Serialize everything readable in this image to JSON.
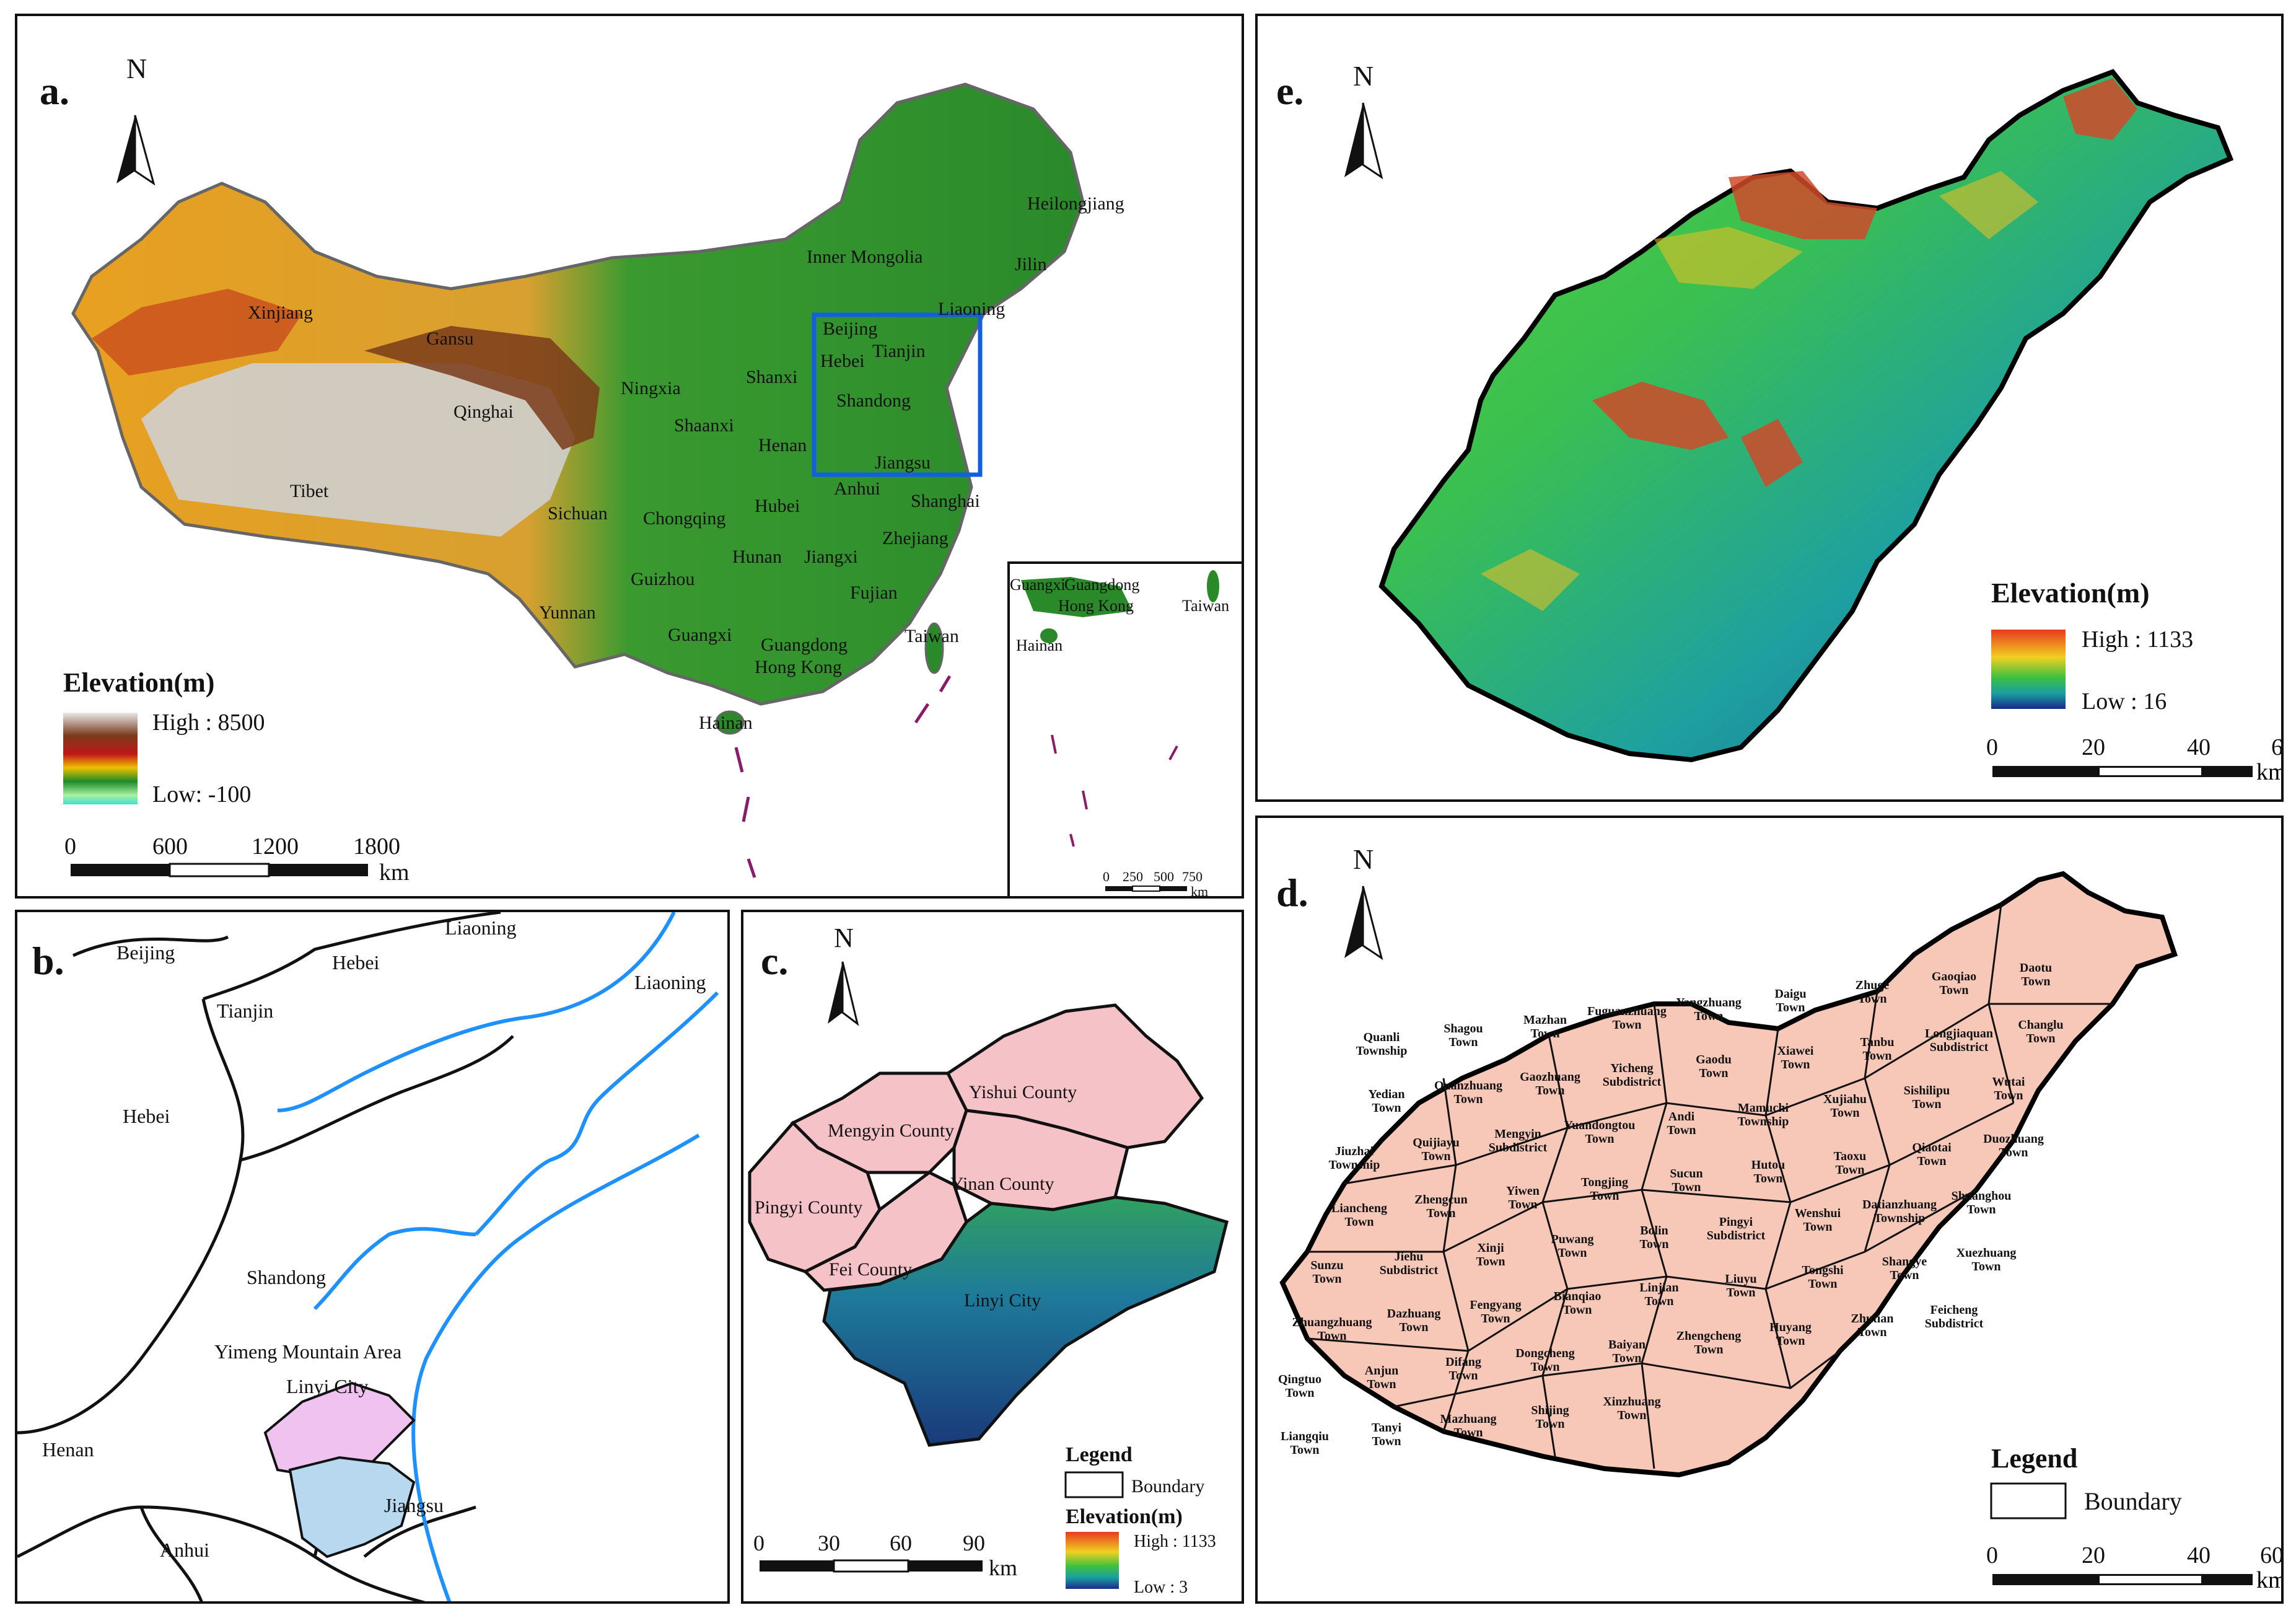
{
  "panel_a": {
    "letter": "a.",
    "north": "N",
    "legend_title": "Elevation(m)",
    "high": "High : 8500",
    "low": "Low: -100",
    "scale_ticks": [
      "0",
      "600",
      "1200",
      "1800"
    ],
    "scale_unit": "km",
    "inset_ticks": [
      "0",
      "250",
      "500",
      "750"
    ],
    "inset_unit": "km",
    "labels": [
      "Xinjiang",
      "Gansu",
      "Qinghai",
      "Tibet",
      "Ningxia",
      "Shaanxi",
      "Sichuan",
      "Chongqing",
      "Yunnan",
      "Guizhou",
      "Guangxi",
      "Hainan",
      "Hunan",
      "Jiangxi",
      "Hubei",
      "Henan",
      "Anhui",
      "Shanxi",
      "Inner Mongolia",
      "Heilongjiang",
      "Jilin",
      "Liaoning",
      "Beijing",
      "Hebei",
      "Tianjin",
      "Shandong",
      "Jiangsu",
      "Shanghai",
      "Zhejiang",
      "Fujian",
      "Guangdong",
      "Hong Kong",
      "Taiwan"
    ],
    "inset_labels": [
      "Guangxi",
      "Guangdong",
      "Hong Kong",
      "Taiwan",
      "Hainan"
    ]
  },
  "panel_b": {
    "letter": "b.",
    "labels": [
      "Beijing",
      "Tianjin",
      "Hebei",
      "Liaoning",
      "Liaoning",
      "Hebei",
      "Shandong",
      "Yimeng Mountain Area",
      "Linyi City",
      "Henan",
      "Jiangsu",
      "Anhui"
    ]
  },
  "panel_c": {
    "letter": "c.",
    "north": "N",
    "counties": [
      "Yishui County",
      "Mengyin County",
      "Yinan County",
      "Pingyi County",
      "Fei County",
      "Linyi City"
    ],
    "legend_title": "Legend",
    "boundary": "Boundary",
    "elev_title": "Elevation(m)",
    "high": "High : 1133",
    "low": "Low : 3",
    "scale_ticks": [
      "0",
      "30",
      "60",
      "90"
    ],
    "scale_unit": "km"
  },
  "panel_e": {
    "letter": "e.",
    "north": "N",
    "legend_title": "Elevation(m)",
    "high": "High : 1133",
    "low": "Low : 16",
    "scale_ticks": [
      "0",
      "20",
      "40",
      "60"
    ],
    "scale_unit": "km"
  },
  "panel_d": {
    "letter": "d.",
    "north": "N",
    "legend_title": "Legend",
    "boundary": "Boundary",
    "scale_ticks": [
      "0",
      "20",
      "40",
      "60"
    ],
    "scale_unit": "km",
    "towns": [
      "Quanli Township",
      "Shagou Town",
      "Mazhan Town",
      "Fuguanzhuang Town",
      "Yangzhuang Town",
      "Daigu Town",
      "Zhuge Town",
      "Gaoqiao Town",
      "Daotu Town",
      "Yedian Town",
      "Quanzhuang Town",
      "Gaozhuang Town",
      "Yicheng Subdistrict",
      "Gaodu Town",
      "Xiawei Town",
      "Tanbu Town",
      "Longjiaquan Subdistrict",
      "Changlu Town",
      "Jiuzhai Township",
      "Quijiayu Town",
      "Mengyin Subdistrict",
      "Yuandongtou Town",
      "Andi Town",
      "Mamuchi Township",
      "Xujiahu Town",
      "Sishilipu Town",
      "Wutai Town",
      "Liancheng Town",
      "Zhengcun Town",
      "Yiwen Town",
      "Tongjing Town",
      "Sucun Town",
      "Hutou Town",
      "Taoxu Town",
      "Qiaotai Town",
      "Duozhuang Town",
      "Sunzu Town",
      "Jiehu Subdistrict",
      "Xinji Town",
      "Puwang Town",
      "Bolin Town",
      "Pingyi Subdistrict",
      "Wenshui Town",
      "Datianzhuang Township",
      "Shuanghou Town",
      "Zhuangzhuang Town",
      "Dazhuang Town",
      "Fengyang Town",
      "Bianqiao Town",
      "Linjian Town",
      "Liuyu Town",
      "Tongshi Town",
      "Shangye Town",
      "Xuezhuang Town",
      "Qingtuo Town",
      "Anjun Town",
      "Difang Town",
      "Dongcheng Town",
      "Baiyan Town",
      "Zhengcheng Town",
      "Huyang Town",
      "Zhutian Town",
      "Feicheng Subdistrict",
      "Liangqiu Town",
      "Tanyi Town",
      "Mazhuang Town",
      "Shijing Town",
      "Xinzhuang Town"
    ]
  }
}
